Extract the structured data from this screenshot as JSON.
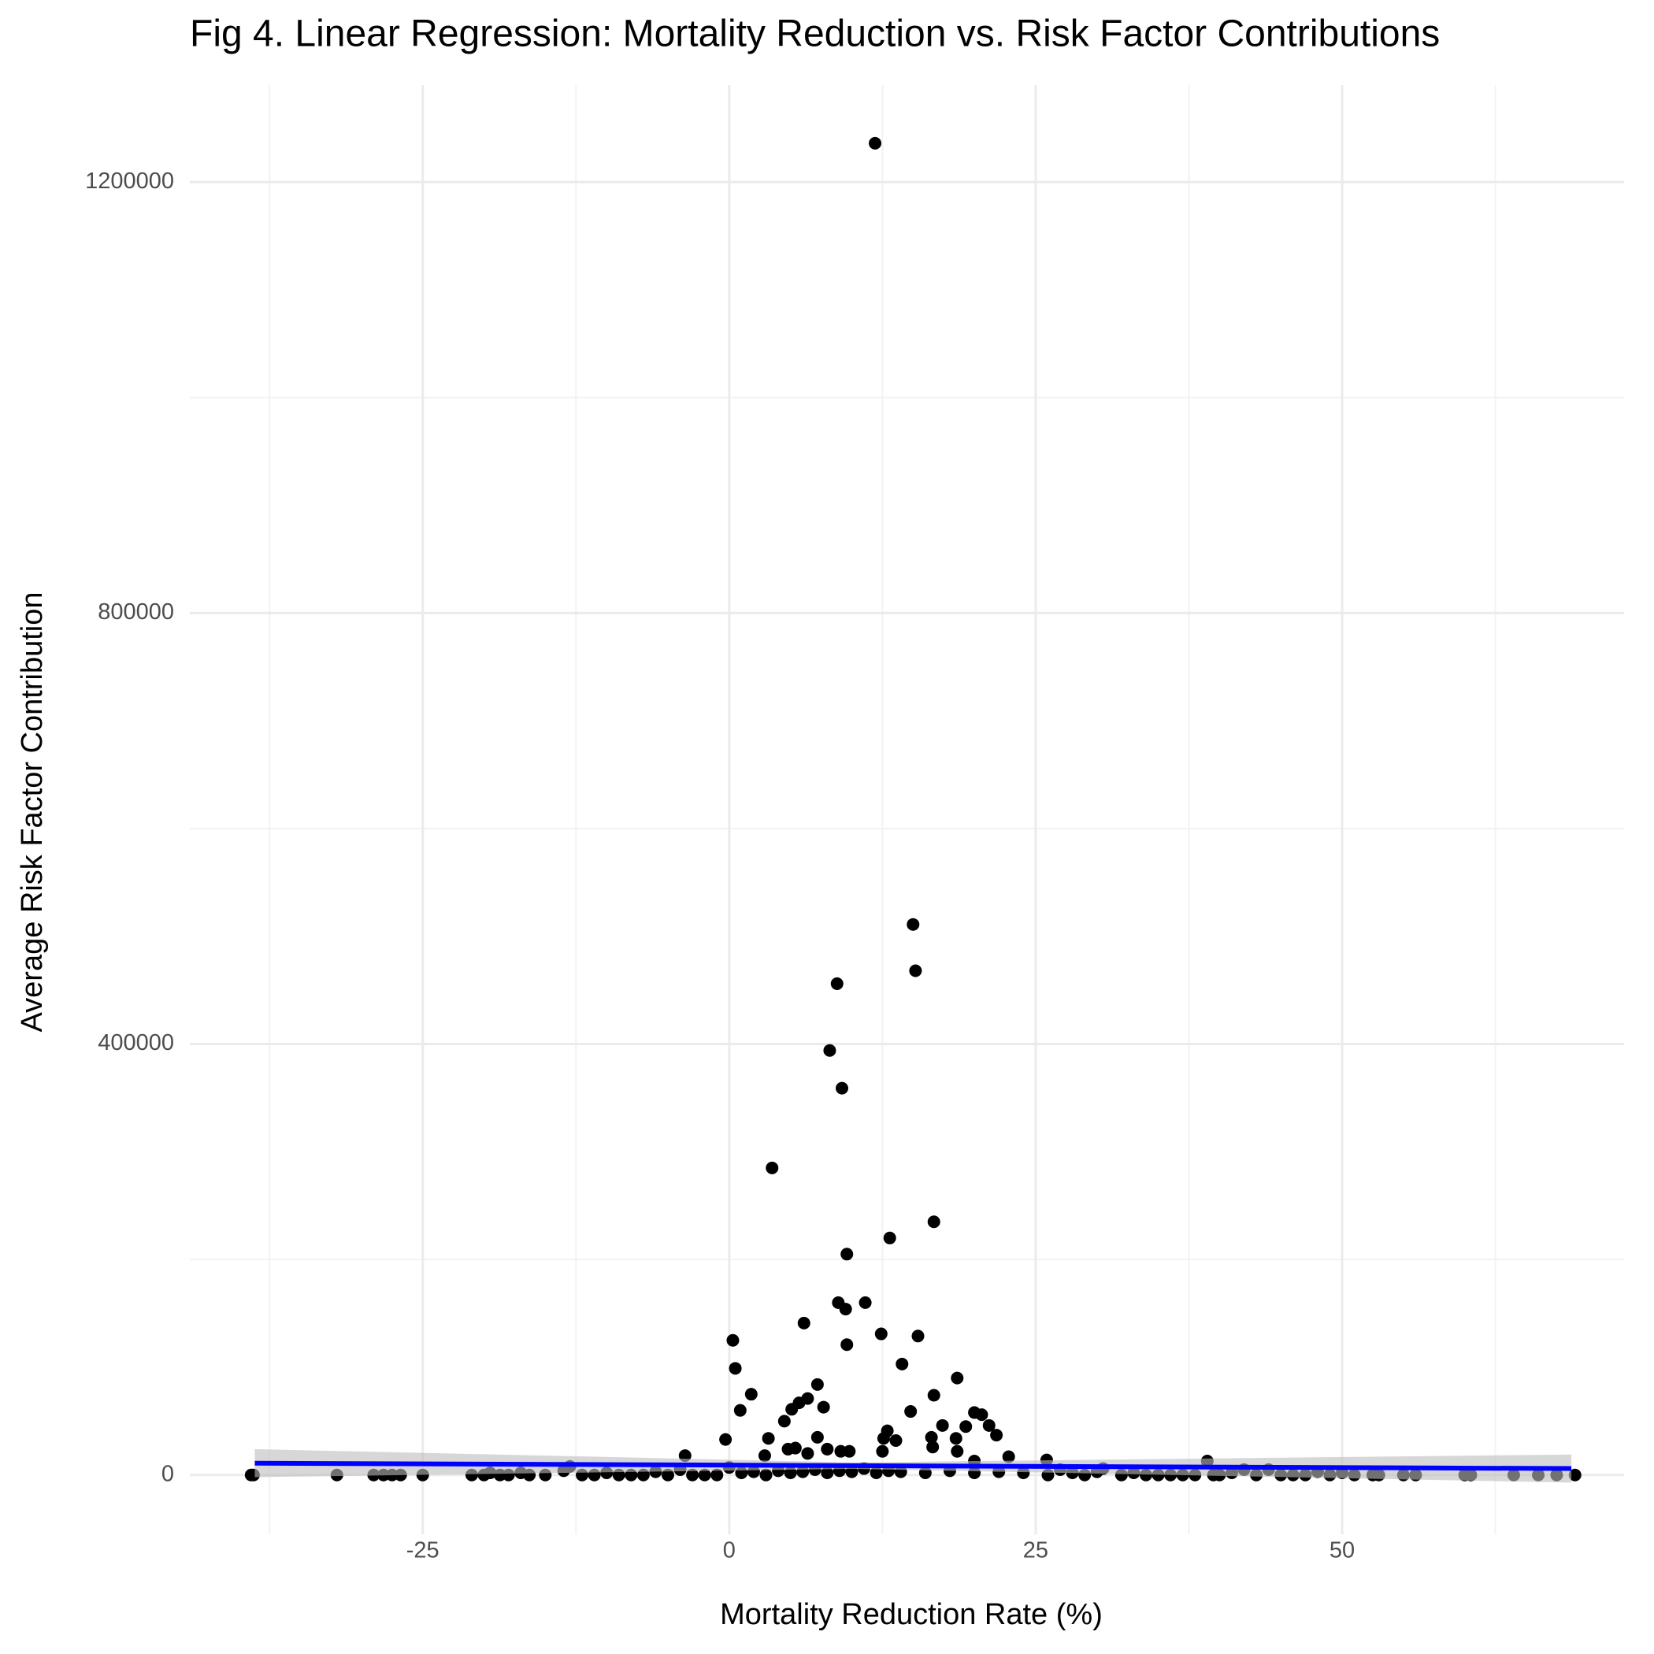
{
  "chart_data": {
    "type": "scatter",
    "title": "Fig 4. Linear Regression: Mortality Reduction vs. Risk Factor Contributions",
    "x_label": "Mortality Reduction Rate (%)",
    "y_label": "Average Risk Factor Contribution",
    "color": "#000000",
    "x": [
      11.9,
      15,
      15.2,
      8.8,
      8.2,
      9.2,
      3.5,
      16.7,
      13.1,
      9.6,
      8.9,
      11.1,
      9.5,
      6.1,
      12.4,
      15.4,
      0.3,
      9.6,
      0.5,
      14.1,
      18.6,
      7.2,
      1.8,
      6.4,
      5.7,
      16.7,
      5.1,
      0.9,
      14.8,
      20,
      20.6,
      7.7,
      4.5,
      21.2,
      17.4,
      21.8,
      19.3,
      12.9,
      13.6,
      12.6,
      18.5,
      16.5,
      -0.3,
      3.2,
      7.2,
      8,
      18.6,
      16.6,
      -3.6,
      6.4,
      9.1,
      9.8,
      4.8,
      5.4,
      2.9,
      12.5,
      22.8,
      20,
      25.9,
      39,
      -39,
      -38.8,
      -32,
      -29,
      -28.2,
      -27.5,
      -26.8,
      -25,
      -21,
      -20,
      -19.5,
      -18.7,
      -18,
      -17,
      -16.3,
      -15,
      -13.5,
      -13,
      -12,
      -11,
      -10,
      -9,
      -8,
      -7,
      -6,
      -5,
      -4,
      -3,
      -2,
      -1,
      0,
      1,
      2,
      3,
      4,
      5,
      6,
      7,
      8,
      9,
      10,
      11,
      12,
      13,
      14,
      16,
      18,
      20,
      22,
      24,
      26,
      27,
      28,
      29,
      30,
      30.5,
      32,
      33,
      34,
      35,
      36,
      37,
      38,
      39.5,
      40,
      41,
      42,
      43,
      44,
      45,
      46,
      47,
      48,
      49,
      50,
      51,
      52.5,
      53,
      55,
      56,
      60,
      60.5,
      64,
      66,
      67.5,
      69
    ],
    "values": [
      1236000,
      511000,
      468000,
      456000,
      394000,
      359000,
      285000,
      235000,
      220000,
      205000,
      160000,
      160000,
      154000,
      141000,
      131000,
      129000,
      125000,
      121000,
      99000,
      103000,
      90000,
      84000,
      75000,
      71000,
      67000,
      74000,
      61000,
      60000,
      59000,
      58000,
      56000,
      63000,
      50000,
      46000,
      46000,
      37000,
      45000,
      41000,
      32000,
      34000,
      34000,
      35000,
      33000,
      34000,
      35000,
      24000,
      22000,
      26000,
      18000,
      20000,
      22000,
      22000,
      24000,
      25000,
      18000,
      22000,
      17000,
      13000,
      14000,
      13000,
      0,
      0,
      0,
      0,
      0,
      0,
      0,
      0,
      0,
      0,
      2000,
      0,
      0,
      2000,
      0,
      0,
      4000,
      8000,
      0,
      0,
      2000,
      0,
      0,
      0,
      3000,
      0,
      5000,
      0,
      0,
      0,
      7000,
      2000,
      3000,
      0,
      4000,
      2000,
      3000,
      5000,
      2000,
      4000,
      3000,
      6000,
      2000,
      4000,
      3000,
      2000,
      4000,
      2000,
      3000,
      2000,
      0,
      5000,
      2000,
      0,
      3000,
      6000,
      0,
      2000,
      0,
      0,
      0,
      0,
      0,
      0,
      0,
      2000,
      5000,
      0,
      5000,
      0,
      0,
      0,
      3000,
      0,
      2000,
      0,
      0,
      0,
      0,
      0,
      0,
      0,
      0,
      0,
      0,
      0
    ],
    "fit": {
      "color": "#0000ff",
      "band_color": "#bdbdbd",
      "x": [
        -38.7,
        10,
        68.7
      ],
      "values": [
        11000,
        8700,
        6000
      ],
      "lower": [
        -2000,
        5700,
        -7000
      ],
      "upper": [
        24000,
        11700,
        19000
      ]
    },
    "xlim": [
      -44,
      73
    ],
    "xticks": [
      -25,
      0,
      25,
      50
    ],
    "x_minor_ticks": [
      -37.5,
      -12.5,
      12.5,
      37.5,
      62.5
    ],
    "ylim": [
      -55000,
      1290000
    ],
    "yticks": [
      0,
      400000,
      800000,
      1200000
    ],
    "y_minor_ticks": [
      200000,
      600000,
      1000000
    ],
    "grid": true
  }
}
